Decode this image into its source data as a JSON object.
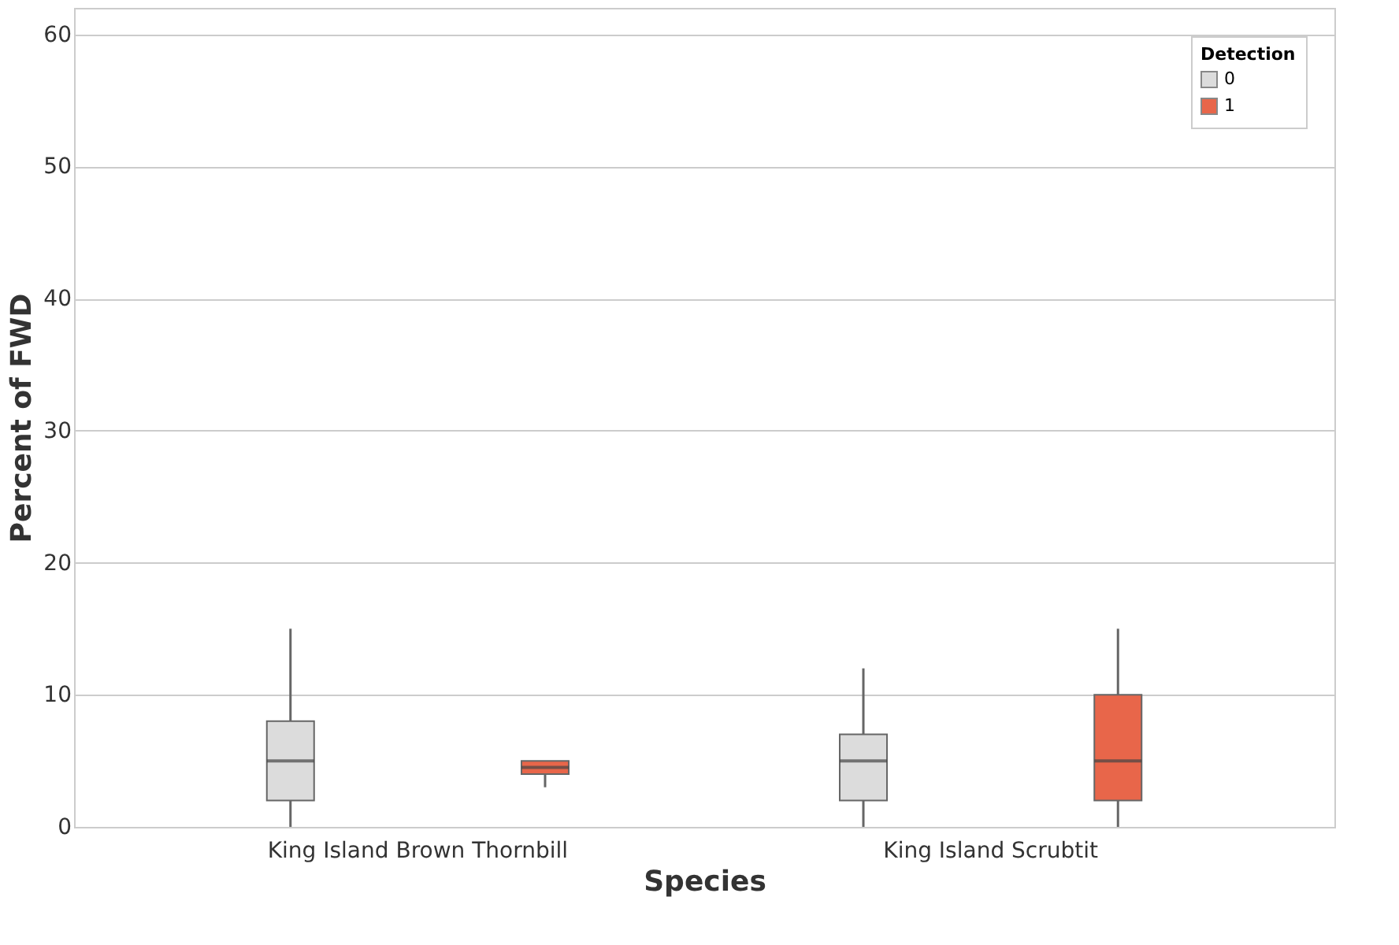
{
  "chart_data": {
    "type": "box",
    "xlabel": "Species",
    "ylabel": "Percent of FWD",
    "legend_title": "Detection",
    "categories": [
      "King Island Brown Thornbill",
      "King Island Scrubtit"
    ],
    "series": [
      {
        "name": "0",
        "color": "#dcdcdc",
        "boxes": [
          {
            "low": 0,
            "q1": 2,
            "median": 5,
            "q3": 8,
            "high": 15
          },
          {
            "low": 0,
            "q1": 2,
            "median": 5,
            "q3": 7,
            "high": 12
          }
        ]
      },
      {
        "name": "1",
        "color": "#e8664a",
        "boxes": [
          {
            "low": 3,
            "q1": 4,
            "median": 4.5,
            "q3": 5,
            "high": 5
          },
          {
            "low": 0,
            "q1": 2,
            "median": 5,
            "q3": 10,
            "high": 15
          }
        ]
      }
    ],
    "ylim": [
      0,
      62
    ],
    "yticks": [
      0,
      10,
      20,
      30,
      40,
      50,
      60
    ],
    "grid": "y",
    "legend": "top right"
  }
}
